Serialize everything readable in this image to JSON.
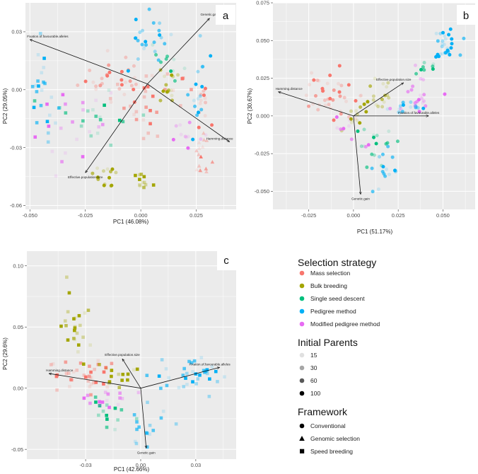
{
  "chart_data": [
    {
      "type": "scatter",
      "panel_label": "a",
      "xlabel": "PC1 (46.08%)",
      "ylabel": "PC2 (29.05%)",
      "xlim": [
        -0.052,
        0.043
      ],
      "ylim": [
        -0.062,
        0.045
      ],
      "xticks": [
        -0.05,
        -0.025,
        0.0,
        0.025
      ],
      "xtick_labels": [
        "-0.050",
        "-0.025",
        "0.000",
        "0.025"
      ],
      "yticks": [
        0.03,
        0.0,
        -0.03,
        -0.06
      ],
      "ytick_labels": [
        "0.03",
        "0.00",
        "-0.03",
        "-0.06"
      ],
      "vectors": [
        {
          "label": "Genetic.gain",
          "x": 0.031,
          "y": 0.037
        },
        {
          "label": "Fixation.of.favourable.alleles",
          "x": -0.05,
          "y": 0.026
        },
        {
          "label": "Hamming.distance",
          "x": 0.04,
          "y": -0.027
        },
        {
          "label": "Effective.population.size",
          "x": -0.025,
          "y": -0.043
        }
      ],
      "clusters": [
        {
          "strategy": "Mass selection",
          "shape": "circle",
          "cx": -0.012,
          "cy": 0.006,
          "sx": 0.008,
          "sy": 0.007,
          "n": 30
        },
        {
          "strategy": "Mass selection",
          "shape": "square",
          "cx": 0.004,
          "cy": -0.006,
          "sx": 0.01,
          "sy": 0.008,
          "n": 30
        },
        {
          "strategy": "Mass selection",
          "shape": "triangle",
          "cx": 0.027,
          "cy": -0.038,
          "sx": 0.002,
          "sy": 0.008,
          "n": 16
        },
        {
          "strategy": "Mass selection",
          "shape": "circle",
          "cx": 0.028,
          "cy": -0.005,
          "sx": 0.002,
          "sy": 0.006,
          "n": 12
        },
        {
          "strategy": "Bulk breeding",
          "shape": "circle",
          "cx": 0.012,
          "cy": 0.0,
          "sx": 0.002,
          "sy": 0.004,
          "n": 14
        },
        {
          "strategy": "Bulk breeding",
          "shape": "circle",
          "cx": -0.015,
          "cy": -0.045,
          "sx": 0.004,
          "sy": 0.005,
          "n": 14
        },
        {
          "strategy": "Bulk breeding",
          "shape": "square",
          "cx": 0.0,
          "cy": -0.045,
          "sx": 0.002,
          "sy": 0.004,
          "n": 12
        },
        {
          "strategy": "Single seed descent",
          "shape": "square",
          "cx": -0.02,
          "cy": -0.015,
          "sx": 0.008,
          "sy": 0.008,
          "n": 18
        },
        {
          "strategy": "Single seed descent",
          "shape": "circle",
          "cx": 0.013,
          "cy": 0.013,
          "sx": 0.003,
          "sy": 0.005,
          "n": 10
        },
        {
          "strategy": "Pedigree method",
          "shape": "square",
          "cx": -0.045,
          "cy": 0.002,
          "sx": 0.004,
          "sy": 0.012,
          "n": 24
        },
        {
          "strategy": "Pedigree method",
          "shape": "circle",
          "cx": 0.005,
          "cy": 0.03,
          "sx": 0.005,
          "sy": 0.007,
          "n": 24
        },
        {
          "strategy": "Pedigree method",
          "shape": "circle",
          "cx": 0.025,
          "cy": 0.0,
          "sx": 0.002,
          "sy": 0.012,
          "n": 16
        },
        {
          "strategy": "Modified pedigree method",
          "shape": "square",
          "cx": -0.03,
          "cy": -0.018,
          "sx": 0.008,
          "sy": 0.008,
          "n": 20
        },
        {
          "strategy": "Modified pedigree method",
          "shape": "circle",
          "cx": 0.02,
          "cy": -0.025,
          "sx": 0.004,
          "sy": 0.003,
          "n": 12
        }
      ]
    },
    {
      "type": "scatter",
      "panel_label": "b",
      "xlabel": "PC1 (51.17%)",
      "ylabel": "PC2 (30.67%)",
      "xlim": [
        -0.045,
        0.068
      ],
      "ylim": [
        -0.062,
        0.075
      ],
      "xticks": [
        -0.025,
        0.0,
        0.025,
        0.05
      ],
      "xtick_labels": [
        "-0.025",
        "0.000",
        "0.025",
        "0.050"
      ],
      "yticks": [
        0.075,
        0.05,
        0.025,
        0.0,
        -0.025,
        -0.05
      ],
      "ytick_labels": [
        "0.075",
        "0.050",
        "0.025",
        "0.000",
        "-0.025",
        "-0.050"
      ],
      "vectors": [
        {
          "label": "Effective.population.size",
          "x": 0.028,
          "y": 0.022
        },
        {
          "label": "Hamming.distance",
          "x": -0.042,
          "y": 0.016
        },
        {
          "label": "Fixation.of.favourable.alleles",
          "x": 0.042,
          "y": 0.0
        },
        {
          "label": "Genetic.gain",
          "x": 0.004,
          "y": -0.052
        }
      ],
      "clusters": [
        {
          "strategy": "Mass selection",
          "shape": "circle",
          "cx": -0.012,
          "cy": 0.014,
          "sx": 0.009,
          "sy": 0.008,
          "n": 40
        },
        {
          "strategy": "Bulk breeding",
          "shape": "circle",
          "cx": 0.012,
          "cy": 0.012,
          "sx": 0.005,
          "sy": 0.008,
          "n": 18
        },
        {
          "strategy": "Bulk breeding",
          "shape": "circle",
          "cx": 0.0,
          "cy": -0.002,
          "sx": 0.003,
          "sy": 0.005,
          "n": 10
        },
        {
          "strategy": "Single seed descent",
          "shape": "circle",
          "cx": 0.012,
          "cy": -0.022,
          "sx": 0.005,
          "sy": 0.008,
          "n": 16
        },
        {
          "strategy": "Single seed descent",
          "shape": "circle",
          "cx": 0.04,
          "cy": 0.032,
          "sx": 0.003,
          "sy": 0.004,
          "n": 8
        },
        {
          "strategy": "Pedigree method",
          "shape": "circle",
          "cx": 0.018,
          "cy": -0.035,
          "sx": 0.004,
          "sy": 0.006,
          "n": 16
        },
        {
          "strategy": "Pedigree method",
          "shape": "circle",
          "cx": 0.052,
          "cy": 0.048,
          "sx": 0.004,
          "sy": 0.005,
          "n": 30
        },
        {
          "strategy": "Pedigree method",
          "shape": "circle",
          "cx": 0.03,
          "cy": 0.005,
          "sx": 0.006,
          "sy": 0.003,
          "n": 14
        },
        {
          "strategy": "Modified pedigree method",
          "shape": "circle",
          "cx": 0.035,
          "cy": 0.014,
          "sx": 0.006,
          "sy": 0.007,
          "n": 20
        },
        {
          "strategy": "Modified pedigree method",
          "shape": "circle",
          "cx": -0.005,
          "cy": -0.012,
          "sx": 0.005,
          "sy": 0.005,
          "n": 10
        }
      ]
    },
    {
      "type": "scatter",
      "panel_label": "c",
      "xlabel": "PC1 (42.66%)",
      "ylabel": "PC2 (29.6%)",
      "xlim": [
        -0.062,
        0.052
      ],
      "ylim": [
        -0.058,
        0.112
      ],
      "xticks": [
        -0.03,
        0.0,
        0.03
      ],
      "xtick_labels": [
        "-0.03",
        "0.00",
        "0.03"
      ],
      "yticks": [
        0.1,
        0.05,
        0.0,
        -0.05
      ],
      "ytick_labels": [
        "0.10",
        "0.05",
        "0.00",
        "-0.05"
      ],
      "vectors": [
        {
          "label": "Effective.population.size",
          "x": -0.01,
          "y": 0.024
        },
        {
          "label": "Fixation.of.favourable.alleles",
          "x": 0.043,
          "y": 0.017
        },
        {
          "label": "Hamming.distance",
          "x": -0.05,
          "y": 0.012
        },
        {
          "label": "Genetic.gain",
          "x": 0.003,
          "y": -0.049
        }
      ],
      "clusters": [
        {
          "strategy": "Mass selection",
          "shape": "square",
          "cx": -0.032,
          "cy": 0.008,
          "sx": 0.008,
          "sy": 0.006,
          "n": 36
        },
        {
          "strategy": "Bulk breeding",
          "shape": "square",
          "cx": -0.035,
          "cy": 0.05,
          "sx": 0.004,
          "sy": 0.016,
          "n": 24
        },
        {
          "strategy": "Bulk breeding",
          "shape": "square",
          "cx": -0.012,
          "cy": 0.01,
          "sx": 0.006,
          "sy": 0.006,
          "n": 14
        },
        {
          "strategy": "Single seed descent",
          "shape": "square",
          "cx": -0.015,
          "cy": -0.02,
          "sx": 0.006,
          "sy": 0.008,
          "n": 14
        },
        {
          "strategy": "Pedigree method",
          "shape": "square",
          "cx": 0.025,
          "cy": 0.01,
          "sx": 0.012,
          "sy": 0.008,
          "n": 36
        },
        {
          "strategy": "Pedigree method",
          "shape": "square",
          "cx": 0.005,
          "cy": -0.03,
          "sx": 0.006,
          "sy": 0.008,
          "n": 16
        },
        {
          "strategy": "Modified pedigree method",
          "shape": "square",
          "cx": -0.02,
          "cy": -0.008,
          "sx": 0.008,
          "sy": 0.004,
          "n": 16
        }
      ]
    }
  ],
  "legend": {
    "strategy_title": "Selection strategy",
    "strategies": [
      {
        "label": "Mass selection",
        "color": "#F8766D"
      },
      {
        "label": "Bulk breeding",
        "color": "#A3A500"
      },
      {
        "label": "Single seed descent",
        "color": "#00BF7D"
      },
      {
        "label": "Pedigree method",
        "color": "#00B0F6"
      },
      {
        "label": "Modified pedigree method",
        "color": "#E76BF3"
      }
    ],
    "parents_title": "Initial Parents",
    "parents": [
      {
        "label": "15",
        "alpha": 0.12
      },
      {
        "label": "30",
        "alpha": 0.35
      },
      {
        "label": "60",
        "alpha": 0.65
      },
      {
        "label": "100",
        "alpha": 1.0
      }
    ],
    "framework_title": "Framework",
    "frameworks": [
      {
        "label": "Conventional",
        "shape": "circle"
      },
      {
        "label": "Genomic selection",
        "shape": "triangle"
      },
      {
        "label": "Speed breeding",
        "shape": "square"
      }
    ]
  },
  "colors": {
    "panel_bg": "#EBEBEB",
    "grid": "#FFFFFF",
    "text": "#1A1A1A"
  }
}
